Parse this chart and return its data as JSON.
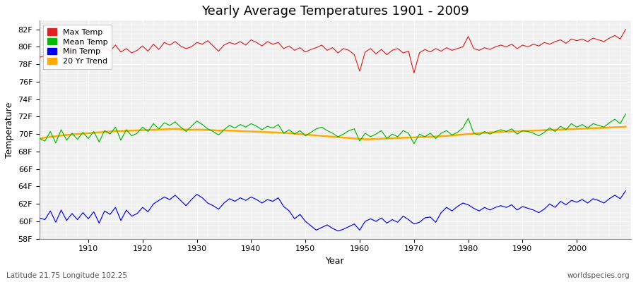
{
  "title": "Yearly Average Temperatures 1901 - 2009",
  "xlabel": "Year",
  "ylabel": "Temperature",
  "footer_left": "Latitude 21.75 Longitude 102.25",
  "footer_right": "worldspecies.org",
  "years": [
    1901,
    1902,
    1903,
    1904,
    1905,
    1906,
    1907,
    1908,
    1909,
    1910,
    1911,
    1912,
    1913,
    1914,
    1915,
    1916,
    1917,
    1918,
    1919,
    1920,
    1921,
    1922,
    1923,
    1924,
    1925,
    1926,
    1927,
    1928,
    1929,
    1930,
    1931,
    1932,
    1933,
    1934,
    1935,
    1936,
    1937,
    1938,
    1939,
    1940,
    1941,
    1942,
    1943,
    1944,
    1945,
    1946,
    1947,
    1948,
    1949,
    1950,
    1951,
    1952,
    1953,
    1954,
    1955,
    1956,
    1957,
    1958,
    1959,
    1960,
    1961,
    1962,
    1963,
    1964,
    1965,
    1966,
    1967,
    1968,
    1969,
    1970,
    1971,
    1972,
    1973,
    1974,
    1975,
    1976,
    1977,
    1978,
    1979,
    1980,
    1981,
    1982,
    1983,
    1984,
    1985,
    1986,
    1987,
    1988,
    1989,
    1990,
    1991,
    1992,
    1993,
    1994,
    1995,
    1996,
    1997,
    1998,
    1999,
    2000,
    2001,
    2002,
    2003,
    2004,
    2005,
    2006,
    2007,
    2008,
    2009
  ],
  "max_temp": [
    78.8,
    79.0,
    79.5,
    78.7,
    79.8,
    79.2,
    79.6,
    79.0,
    79.4,
    79.1,
    79.7,
    79.3,
    79.9,
    79.5,
    80.2,
    79.4,
    79.8,
    79.3,
    79.6,
    80.1,
    79.5,
    80.3,
    79.7,
    80.5,
    80.2,
    80.6,
    80.1,
    79.8,
    80.0,
    80.5,
    80.3,
    80.7,
    80.1,
    79.5,
    80.2,
    80.5,
    80.3,
    80.6,
    80.2,
    80.8,
    80.5,
    80.1,
    80.6,
    80.3,
    80.5,
    79.8,
    80.1,
    79.6,
    79.9,
    79.4,
    79.7,
    79.9,
    80.2,
    79.6,
    79.9,
    79.3,
    79.8,
    79.6,
    79.1,
    77.2,
    79.4,
    79.8,
    79.2,
    79.7,
    79.1,
    79.6,
    79.8,
    79.3,
    79.5,
    77.0,
    79.3,
    79.7,
    79.4,
    79.8,
    79.5,
    79.9,
    79.6,
    79.8,
    80.0,
    81.2,
    79.8,
    79.6,
    79.9,
    79.7,
    80.0,
    80.2,
    80.0,
    80.3,
    79.8,
    80.2,
    80.0,
    80.3,
    80.1,
    80.5,
    80.3,
    80.6,
    80.8,
    80.4,
    80.9,
    80.7,
    80.9,
    80.6,
    81.0,
    80.8,
    80.6,
    81.0,
    81.3,
    80.9,
    82.0
  ],
  "mean_temp": [
    69.5,
    69.2,
    70.3,
    69.0,
    70.5,
    69.3,
    70.1,
    69.4,
    70.2,
    69.5,
    70.3,
    69.1,
    70.4,
    70.0,
    70.8,
    69.3,
    70.5,
    69.8,
    70.1,
    70.8,
    70.3,
    71.2,
    70.6,
    71.3,
    71.0,
    71.4,
    70.8,
    70.3,
    70.9,
    71.5,
    71.1,
    70.6,
    70.3,
    69.9,
    70.5,
    71.0,
    70.7,
    71.1,
    70.8,
    71.2,
    70.9,
    70.5,
    70.9,
    70.7,
    71.1,
    70.1,
    70.5,
    70.0,
    70.4,
    69.8,
    70.2,
    70.6,
    70.8,
    70.4,
    70.1,
    69.7,
    70.0,
    70.4,
    70.6,
    69.2,
    70.1,
    69.7,
    70.0,
    70.4,
    69.5,
    70.0,
    69.7,
    70.4,
    70.1,
    68.9,
    70.0,
    69.7,
    70.1,
    69.5,
    70.1,
    70.4,
    69.9,
    70.2,
    70.7,
    71.8,
    70.1,
    69.9,
    70.3,
    70.0,
    70.3,
    70.5,
    70.3,
    70.6,
    70.0,
    70.4,
    70.3,
    70.1,
    69.8,
    70.2,
    70.7,
    70.3,
    70.9,
    70.5,
    71.2,
    70.8,
    71.1,
    70.7,
    71.2,
    71.0,
    70.8,
    71.3,
    71.7,
    71.2,
    72.3
  ],
  "min_temp": [
    60.4,
    60.2,
    61.2,
    59.9,
    61.3,
    60.1,
    60.9,
    60.2,
    61.0,
    60.3,
    61.1,
    59.8,
    61.2,
    60.8,
    61.6,
    60.1,
    61.3,
    60.6,
    60.9,
    61.6,
    61.1,
    62.0,
    62.4,
    62.8,
    62.5,
    63.0,
    62.4,
    61.8,
    62.5,
    63.1,
    62.7,
    62.1,
    61.8,
    61.4,
    62.1,
    62.6,
    62.3,
    62.7,
    62.4,
    62.8,
    62.5,
    62.1,
    62.5,
    62.3,
    62.7,
    61.7,
    61.2,
    60.3,
    60.8,
    60.0,
    59.5,
    59.0,
    59.3,
    59.6,
    59.2,
    58.9,
    59.1,
    59.4,
    59.7,
    59.0,
    60.0,
    60.3,
    60.0,
    60.4,
    59.8,
    60.2,
    59.9,
    60.6,
    60.2,
    59.7,
    59.9,
    60.4,
    60.5,
    59.9,
    61.0,
    61.6,
    61.2,
    61.7,
    62.1,
    61.9,
    61.5,
    61.2,
    61.6,
    61.3,
    61.6,
    61.8,
    61.6,
    61.9,
    61.3,
    61.7,
    61.5,
    61.3,
    61.0,
    61.4,
    62.0,
    61.6,
    62.3,
    61.9,
    62.4,
    62.2,
    62.5,
    62.1,
    62.6,
    62.4,
    62.1,
    62.6,
    63.0,
    62.6,
    63.5
  ],
  "trend_years": [
    1901,
    1902,
    1903,
    1904,
    1905,
    1906,
    1907,
    1908,
    1909,
    1910,
    1911,
    1912,
    1913,
    1914,
    1915,
    1916,
    1917,
    1918,
    1919,
    1920,
    1921,
    1922,
    1923,
    1924,
    1925,
    1926,
    1927,
    1928,
    1929,
    1930,
    1931,
    1932,
    1933,
    1934,
    1935,
    1936,
    1937,
    1938,
    1939,
    1940,
    1941,
    1942,
    1943,
    1944,
    1945,
    1946,
    1947,
    1948,
    1949,
    1950,
    1951,
    1952,
    1953,
    1954,
    1955,
    1956,
    1957,
    1958,
    1959,
    1960,
    1961,
    1962,
    1963,
    1964,
    1965,
    1966,
    1967,
    1968,
    1969,
    1970,
    1971,
    1972,
    1973,
    1974,
    1975,
    1976,
    1977,
    1978,
    1979,
    1980,
    1981,
    1982,
    1983,
    1984,
    1985,
    1986,
    1987,
    1988,
    1989,
    1990,
    1991,
    1992,
    1993,
    1994,
    1995,
    1996,
    1997,
    1998,
    1999,
    2000,
    2001,
    2002,
    2003,
    2004,
    2005,
    2006,
    2007,
    2008,
    2009
  ],
  "trend_vals": [
    69.5,
    69.6,
    69.7,
    69.75,
    69.85,
    69.9,
    69.95,
    70.0,
    70.05,
    70.1,
    70.15,
    70.2,
    70.25,
    70.3,
    70.35,
    70.35,
    70.38,
    70.4,
    70.42,
    70.45,
    70.48,
    70.5,
    70.52,
    70.55,
    70.57,
    70.6,
    70.55,
    70.52,
    70.5,
    70.52,
    70.5,
    70.48,
    70.45,
    70.4,
    70.42,
    70.4,
    70.38,
    70.35,
    70.32,
    70.3,
    70.28,
    70.25,
    70.22,
    70.2,
    70.18,
    70.15,
    70.1,
    70.05,
    70.0,
    69.95,
    69.9,
    69.85,
    69.8,
    69.75,
    69.7,
    69.65,
    69.6,
    69.55,
    69.5,
    69.45,
    69.4,
    69.42,
    69.45,
    69.48,
    69.5,
    69.52,
    69.55,
    69.58,
    69.6,
    69.62,
    69.65,
    69.68,
    69.7,
    69.72,
    69.75,
    69.8,
    69.85,
    69.9,
    69.95,
    70.0,
    70.05,
    70.1,
    70.15,
    70.2,
    70.22,
    70.25,
    70.28,
    70.3,
    70.32,
    70.35,
    70.38,
    70.4,
    70.42,
    70.45,
    70.48,
    70.5,
    70.52,
    70.55,
    70.58,
    70.6,
    70.62,
    70.65,
    70.68,
    70.7,
    70.72,
    70.75,
    70.78,
    70.8,
    70.85
  ],
  "bg_color": "#ffffff",
  "plot_bg_color": "#f0f0f0",
  "max_color": "#dd2222",
  "mean_color": "#00bb00",
  "min_color": "#0000ee",
  "trend_color": "#ffaa00",
  "ylim": [
    58,
    83
  ],
  "yticks": [
    58,
    60,
    62,
    64,
    66,
    68,
    70,
    72,
    74,
    76,
    78,
    80,
    82
  ],
  "ytick_labels": [
    "58F",
    "60F",
    "62F",
    "64F",
    "66F",
    "68F",
    "70F",
    "72F",
    "74F",
    "76F",
    "78F",
    "80F",
    "82F"
  ],
  "xlim": [
    1901,
    2010
  ],
  "xticks": [
    1910,
    1920,
    1930,
    1940,
    1950,
    1960,
    1970,
    1980,
    1990,
    2000
  ],
  "title_fontsize": 13,
  "label_fontsize": 9,
  "tick_fontsize": 8,
  "legend_fontsize": 8,
  "footer_fontsize": 7.5
}
